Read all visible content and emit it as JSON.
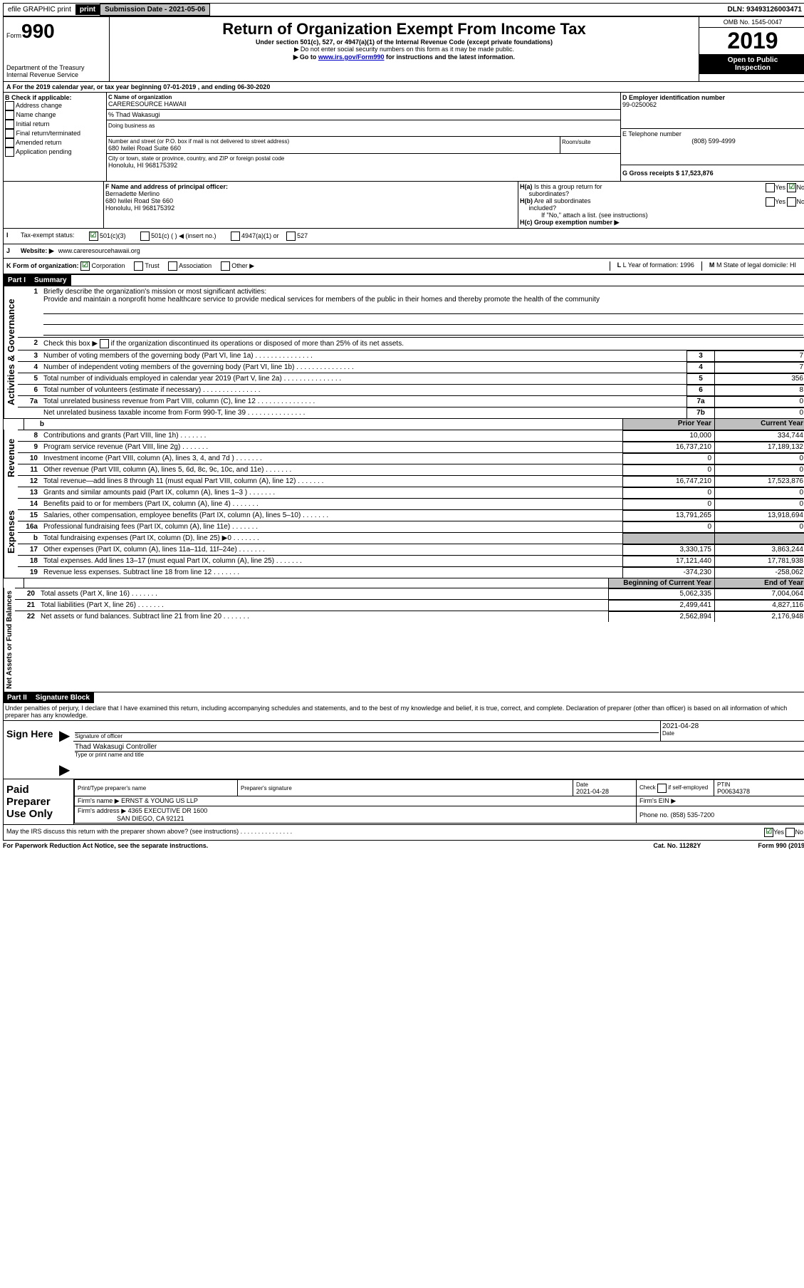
{
  "topbar": {
    "efile": "efile GRAPHIC print",
    "submission_label": "Submission Date - 2021-05-06",
    "dln_label": "DLN: 93493126003471"
  },
  "header": {
    "form": "990",
    "form_word": "Form",
    "title": "Return of Organization Exempt From Income Tax",
    "subtitle": "Under section 501(c), 527, or 4947(a)(1) of the Internal Revenue Code (except private foundations)",
    "warn1": "Do not enter social security numbers on this form as it may be made public.",
    "warn2_pre": "Go to ",
    "warn2_link": "www.irs.gov/Form990",
    "warn2_post": " for instructions and the latest information.",
    "omb": "OMB No. 1545-0047",
    "year": "2019",
    "inspect1": "Open to Public",
    "inspect2": "Inspection",
    "dept": "Department of the Treasury",
    "irs": "Internal Revenue Service"
  },
  "sectionA": {
    "line": "A For the 2019 calendar year, or tax year beginning 07-01-2019   , and ending 06-30-2020",
    "b_label": "B Check if applicable:",
    "b_items": [
      "Address change",
      "Name change",
      "Initial return",
      "Final return/terminated",
      "Amended return",
      "Application pending"
    ],
    "c_label": "C Name of organization",
    "c_name": "CARERESOURCE HAWAII",
    "care_of_label": "% Thad Wakasugi",
    "dba_label": "Doing business as",
    "addr_label": "Number and street (or P.O. box if mail is not delivered to street address)",
    "room_label": "Room/suite",
    "addr": "680 Iwilei Road Suite 660",
    "city_label": "City or town, state or province, country, and ZIP or foreign postal code",
    "city": "Honolulu, HI  968175392",
    "d_label": "D Employer identification number",
    "d_val": "99-0250062",
    "e_label": "E Telephone number",
    "e_val": "(808) 599-4999",
    "g_label": "G Gross receipts $ 17,523,876",
    "f_label": "F  Name and address of principal officer:",
    "f_name": "Bernadette Merlino",
    "f_addr1": "680 Iwilei Road Ste 660",
    "f_addr2": "Honolulu, HI  968175392",
    "ha_label": "H(a)  Is this a group return for subordinates?",
    "hb_label": "H(b)  Are all subordinates included?",
    "hb_note": "If \"No,\" attach a list. (see instructions)",
    "hc_label": "H(c)  Group exemption number ▶",
    "yes": "Yes",
    "no": "No",
    "i_label": "Tax-exempt status:",
    "i_opts": [
      "501(c)(3)",
      "501(c) (  ) ◀ (insert no.)",
      "4947(a)(1) or",
      "527"
    ],
    "j_label": "J",
    "j_text": "Website: ▶",
    "j_val": "www.careresourcehawaii.org",
    "k_label": "K Form of organization:",
    "k_opts": [
      "Corporation",
      "Trust",
      "Association",
      "Other ▶"
    ],
    "l_label": "L Year of formation: 1996",
    "m_label": "M State of legal domicile: HI"
  },
  "part1": {
    "hdr": "Part I",
    "title": "Summary",
    "gov_label": "Activities & Governance",
    "rev_label": "Revenue",
    "exp_label": "Expenses",
    "net_label": "Net Assets or Fund Balances",
    "line1_label": "Briefly describe the organization's mission or most significant activities:",
    "line1_text": "Provide and maintain a nonprofit home healthcare service to provide medical services for members of the public in their homes and thereby promote the health of the community",
    "line2_text": "Check this box ▶       if the organization discontinued its operations or disposed of more than 25% of its net assets.",
    "rows_gov": [
      {
        "n": "3",
        "t": "Number of voting members of the governing body (Part VI, line 1a)",
        "box": "3",
        "v": "7"
      },
      {
        "n": "4",
        "t": "Number of independent voting members of the governing body (Part VI, line 1b)",
        "box": "4",
        "v": "7"
      },
      {
        "n": "5",
        "t": "Total number of individuals employed in calendar year 2019 (Part V, line 2a)",
        "box": "5",
        "v": "356"
      },
      {
        "n": "6",
        "t": "Total number of volunteers (estimate if necessary)",
        "box": "6",
        "v": "8"
      },
      {
        "n": "7a",
        "t": "Total unrelated business revenue from Part VIII, column (C), line 12",
        "box": "7a",
        "v": "0"
      },
      {
        "n": "",
        "t": "Net unrelated business taxable income from Form 990-T, line 39",
        "box": "7b",
        "v": "0"
      }
    ],
    "py_hdr": "Prior Year",
    "cy_hdr": "Current Year",
    "rows_rev": [
      {
        "n": "8",
        "t": "Contributions and grants (Part VIII, line 1h)",
        "py": "10,000",
        "cy": "334,744"
      },
      {
        "n": "9",
        "t": "Program service revenue (Part VIII, line 2g)",
        "py": "16,737,210",
        "cy": "17,189,132"
      },
      {
        "n": "10",
        "t": "Investment income (Part VIII, column (A), lines 3, 4, and 7d )",
        "py": "0",
        "cy": "0"
      },
      {
        "n": "11",
        "t": "Other revenue (Part VIII, column (A), lines 5, 6d, 8c, 9c, 10c, and 11e)",
        "py": "0",
        "cy": "0"
      },
      {
        "n": "12",
        "t": "Total revenue—add lines 8 through 11 (must equal Part VIII, column (A), line 12)",
        "py": "16,747,210",
        "cy": "17,523,876"
      }
    ],
    "rows_exp": [
      {
        "n": "13",
        "t": "Grants and similar amounts paid (Part IX, column (A), lines 1–3 )",
        "py": "0",
        "cy": "0"
      },
      {
        "n": "14",
        "t": "Benefits paid to or for members (Part IX, column (A), line 4)",
        "py": "0",
        "cy": "0"
      },
      {
        "n": "15",
        "t": "Salaries, other compensation, employee benefits (Part IX, column (A), lines 5–10)",
        "py": "13,791,265",
        "cy": "13,918,694"
      },
      {
        "n": "16a",
        "t": "Professional fundraising fees (Part IX, column (A), line 11e)",
        "py": "0",
        "cy": "0"
      },
      {
        "n": "b",
        "t": "Total fundraising expenses (Part IX, column (D), line 25) ▶0",
        "py": "",
        "cy": "",
        "shade": true
      },
      {
        "n": "17",
        "t": "Other expenses (Part IX, column (A), lines 11a–11d, 11f–24e)",
        "py": "3,330,175",
        "cy": "3,863,244"
      },
      {
        "n": "18",
        "t": "Total expenses. Add lines 13–17 (must equal Part IX, column (A), line 25)",
        "py": "17,121,440",
        "cy": "17,781,938"
      },
      {
        "n": "19",
        "t": "Revenue less expenses. Subtract line 18 from line 12",
        "py": "-374,230",
        "cy": "-258,062"
      }
    ],
    "boy_hdr": "Beginning of Current Year",
    "eoy_hdr": "End of Year",
    "rows_net": [
      {
        "n": "20",
        "t": "Total assets (Part X, line 16)",
        "py": "5,062,335",
        "cy": "7,004,064"
      },
      {
        "n": "21",
        "t": "Total liabilities (Part X, line 26)",
        "py": "2,499,441",
        "cy": "4,827,116"
      },
      {
        "n": "22",
        "t": "Net assets or fund balances. Subtract line 21 from line 20",
        "py": "2,562,894",
        "cy": "2,176,948"
      }
    ]
  },
  "part2": {
    "hdr": "Part II",
    "title": "Signature Block",
    "decl": "Under penalties of perjury, I declare that I have examined this return, including accompanying schedules and statements, and to the best of my knowledge and belief, it is true, correct, and complete. Declaration of preparer (other than officer) is based on all information of which preparer has any knowledge.",
    "sign_here": "Sign Here",
    "sig_officer": "Signature of officer",
    "date": "Date",
    "date_val": "2021-04-28",
    "name_title": "Thad Wakasugi  Controller",
    "type_name": "Type or print name and title",
    "paid": "Paid Preparer Use Only",
    "prep_name_hdr": "Print/Type preparer's name",
    "prep_sig_hdr": "Preparer's signature",
    "prep_date_hdr": "Date",
    "prep_date": "2021-04-28",
    "check_self": "Check       if self-employed",
    "ptin_hdr": "PTIN",
    "ptin": "P00634378",
    "firm_name_lbl": "Firm's name    ▶",
    "firm_name": "ERNST & YOUNG US LLP",
    "firm_ein_lbl": "Firm's EIN ▶",
    "firm_addr_lbl": "Firm's address ▶",
    "firm_addr1": "4365 EXECUTIVE DR 1600",
    "firm_addr2": "SAN DIEGO, CA  92121",
    "phone_lbl": "Phone no. (858) 535-7200",
    "discuss": "May the IRS discuss this return with the preparer shown above? (see instructions)",
    "paperwork": "For Paperwork Reduction Act Notice, see the separate instructions.",
    "catno": "Cat. No. 11282Y",
    "formno": "Form 990 (2019)"
  }
}
